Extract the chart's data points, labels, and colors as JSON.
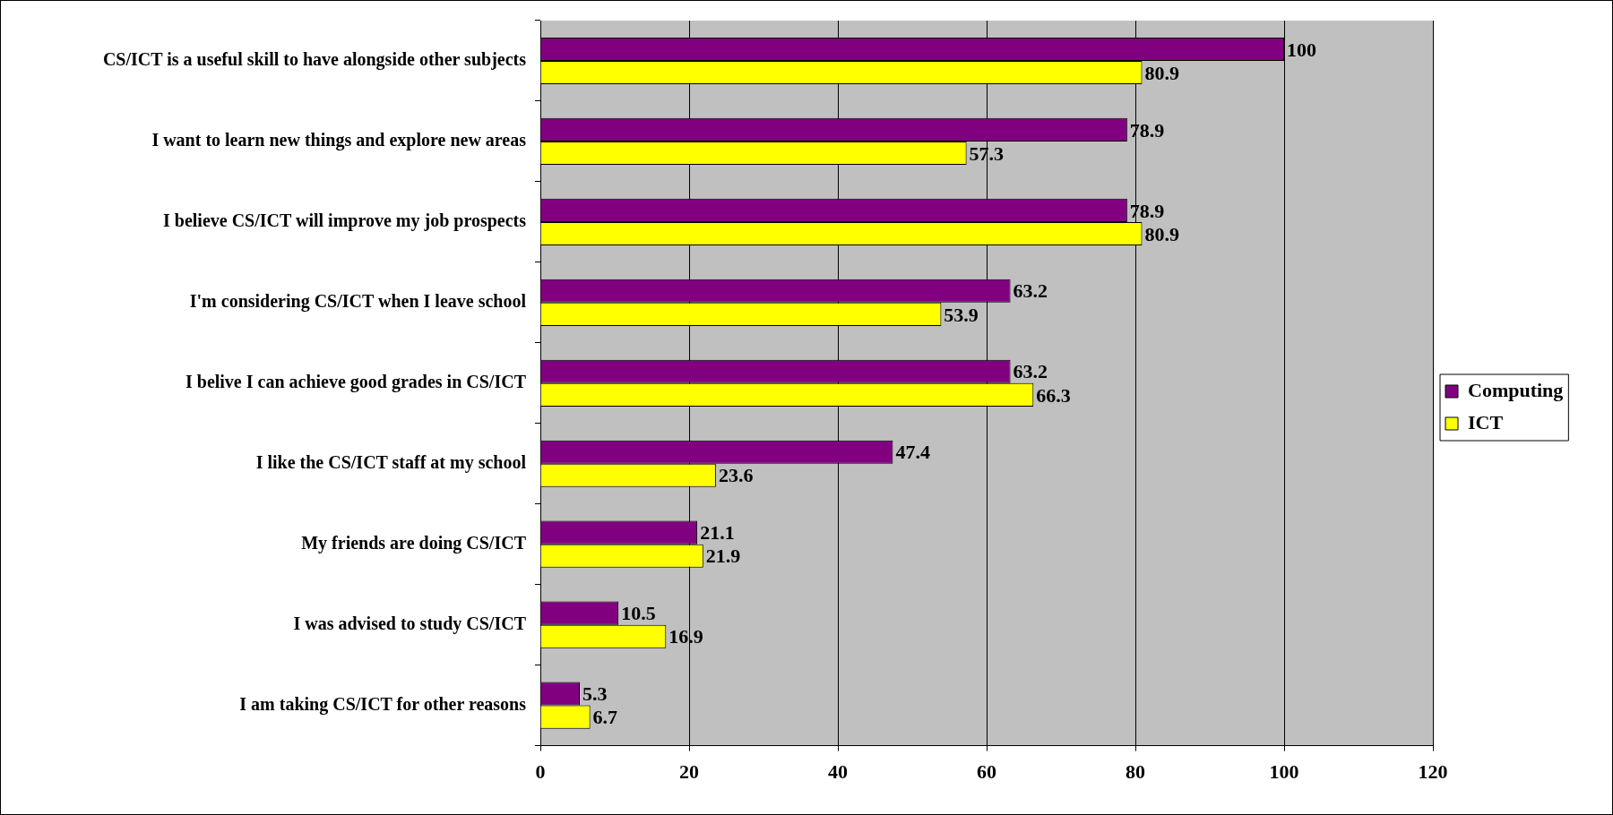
{
  "chart_data": {
    "type": "bar",
    "orientation": "horizontal",
    "categories": [
      "CS/ICT is a useful skill to have alongside other subjects",
      "I want to learn new things and explore new areas",
      "I believe CS/ICT will improve my job prospects",
      "I'm considering CS/ICT when I leave school",
      "I belive I can achieve good grades in CS/ICT",
      "I like the CS/ICT staff at my school",
      "My friends are doing CS/ICT",
      "I was advised to study CS/ICT",
      "I am taking CS/ICT for other reasons"
    ],
    "series": [
      {
        "name": "Computing",
        "color": "#800080",
        "values": [
          100,
          78.9,
          78.9,
          63.2,
          63.2,
          47.4,
          21.1,
          10.5,
          5.3
        ]
      },
      {
        "name": "ICT",
        "color": "#ffff00",
        "values": [
          80.9,
          57.3,
          80.9,
          53.9,
          66.3,
          23.6,
          21.9,
          16.9,
          6.7
        ]
      }
    ],
    "xlim": [
      0,
      120
    ],
    "xticks": [
      0,
      20,
      40,
      60,
      80,
      100,
      120
    ],
    "grid": "x",
    "legend": "right",
    "data_labels": true
  }
}
